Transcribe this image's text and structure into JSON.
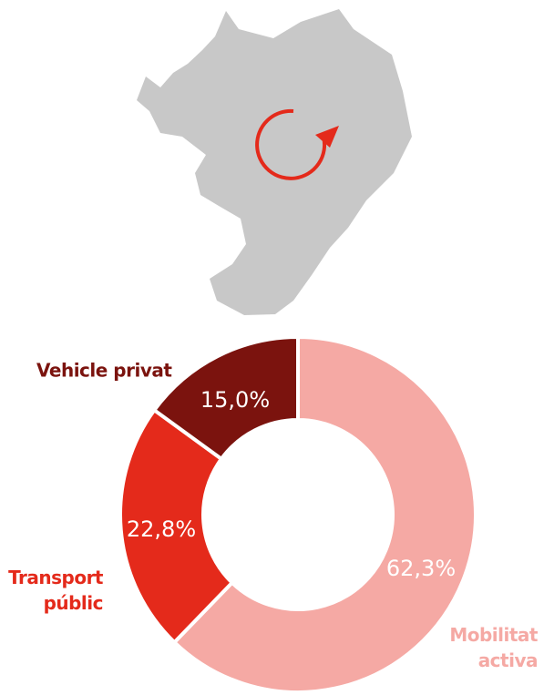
{
  "chart_data": {
    "type": "donut",
    "categories": [
      "Mobilitat activa",
      "Transport públic",
      "Vehicle privat"
    ],
    "values": [
      62.3,
      22.8,
      15.0
    ],
    "value_labels": [
      "62,3%",
      "22,8%",
      "15,0%"
    ],
    "colors": [
      "#f5a9a4",
      "#e42a1b",
      "#7b130e"
    ]
  }
}
